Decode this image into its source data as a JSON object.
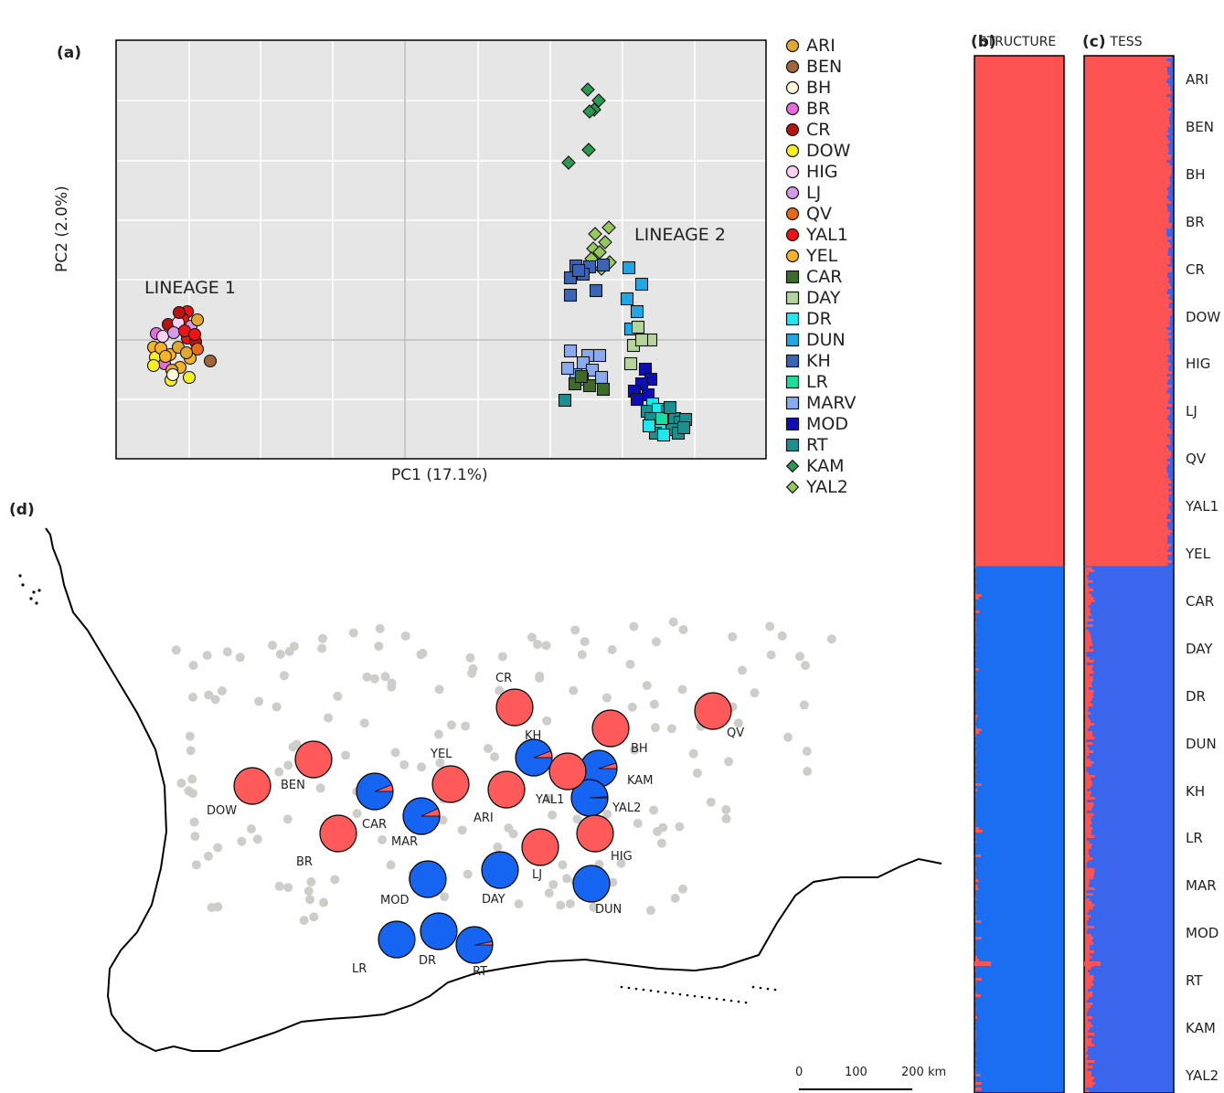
{
  "panel_labels": {
    "a": "(a)",
    "b": "(b)",
    "c": "(c)",
    "d": "(d)"
  },
  "chart_data": [
    {
      "type": "scatter",
      "panel": "(a)",
      "xlabel": "PC1 (17.1%)",
      "ylabel": "PC2 (2.0%)",
      "grid": true,
      "annotations": [
        "LINEAGE 1",
        "LINEAGE 2"
      ],
      "legend": [
        {
          "name": "ARI",
          "marker": "circle",
          "color": "#e0a832"
        },
        {
          "name": "BEN",
          "marker": "circle",
          "color": "#a0683a"
        },
        {
          "name": "BH",
          "marker": "circle",
          "color": "#fbf7d8"
        },
        {
          "name": "BR",
          "marker": "circle",
          "color": "#e86ae0"
        },
        {
          "name": "CR",
          "marker": "circle",
          "color": "#b81414"
        },
        {
          "name": "DOW",
          "marker": "circle",
          "color": "#f7ef1e"
        },
        {
          "name": "HIG",
          "marker": "circle",
          "color": "#f8d2f0"
        },
        {
          "name": "LJ",
          "marker": "circle",
          "color": "#d59ae8"
        },
        {
          "name": "QV",
          "marker": "circle",
          "color": "#e86a18"
        },
        {
          "name": "YAL1",
          "marker": "circle",
          "color": "#ee1414"
        },
        {
          "name": "YEL",
          "marker": "circle",
          "color": "#f5b325"
        },
        {
          "name": "CAR",
          "marker": "square",
          "color": "#3e6b28"
        },
        {
          "name": "DAY",
          "marker": "square",
          "color": "#b4d69c"
        },
        {
          "name": "DR",
          "marker": "square",
          "color": "#1ee8f0"
        },
        {
          "name": "DUN",
          "marker": "square",
          "color": "#1ea8e6"
        },
        {
          "name": "KH",
          "marker": "square",
          "color": "#3a64b8"
        },
        {
          "name": "LR",
          "marker": "square",
          "color": "#18e0a0"
        },
        {
          "name": "MARV",
          "marker": "square",
          "color": "#8aaaf0"
        },
        {
          "name": "MOD",
          "marker": "square",
          "color": "#0e0eb8"
        },
        {
          "name": "RT",
          "marker": "square",
          "color": "#1a9090"
        },
        {
          "name": "KAM",
          "marker": "diamond",
          "color": "#2a9a50"
        },
        {
          "name": "YAL2",
          "marker": "diamond",
          "color": "#96c85a"
        }
      ],
      "groups": {
        "lineage1": {
          "x": [
            -0.95,
            -0.75
          ],
          "y": [
            -0.3,
            0.2
          ],
          "pops": [
            "ARI",
            "BEN",
            "BH",
            "BR",
            "CR",
            "DOW",
            "HIG",
            "LJ",
            "QV",
            "YAL1",
            "YEL"
          ]
        },
        "lineage2_clusters": [
          {
            "pops": [
              "KAM"
            ],
            "x": [
              0.85,
              0.93
            ],
            "y": [
              1.7,
              2.4
            ]
          },
          {
            "pops": [
              "YAL2",
              "KH"
            ],
            "x": [
              0.85,
              0.93
            ],
            "y": [
              0.8,
              1.0
            ]
          },
          {
            "pops": [
              "DUN",
              "DAY"
            ],
            "x": [
              0.93,
              1.0
            ],
            "y": [
              0.0,
              0.9
            ]
          },
          {
            "pops": [
              "MARV",
              "CAR",
              "KH"
            ],
            "x": [
              0.83,
              0.92
            ],
            "y": [
              -0.55,
              -0.15
            ]
          },
          {
            "pops": [
              "MOD",
              "DR",
              "RT",
              "LR"
            ],
            "x": [
              0.96,
              1.08
            ],
            "y": [
              -0.95,
              -0.4
            ]
          }
        ]
      }
    },
    {
      "type": "bar",
      "panel": "(b)",
      "title": "STRUCTURE",
      "orientation": "stacked-horizontal-admixture",
      "categories": [
        "ARI",
        "BEN",
        "BH",
        "BR",
        "CR",
        "DOW",
        "HIG",
        "LJ",
        "QV",
        "YAL1",
        "YEL",
        "CAR",
        "DAY",
        "DR",
        "DUN",
        "KH",
        "LR",
        "MAR",
        "MOD",
        "RT",
        "KAM",
        "YAL2"
      ],
      "series": [
        {
          "name": "",
          "color": "#ff5252",
          "values": [
            1,
            1,
            1,
            1,
            1,
            1,
            1,
            1,
            1,
            1,
            1,
            0.02,
            0.01,
            0.0,
            0.0,
            0.04,
            0.0,
            0.03,
            0.02,
            0.02,
            0.03,
            0.02
          ]
        },
        {
          "name": "",
          "color": "#1a6ef2",
          "values": [
            0,
            0,
            0,
            0,
            0,
            0,
            0,
            0,
            0,
            0,
            0,
            0.98,
            0.99,
            1.0,
            1.0,
            0.96,
            1.0,
            0.97,
            0.98,
            0.98,
            0.97,
            0.98
          ]
        }
      ]
    },
    {
      "type": "bar",
      "panel": "(c)",
      "title": "TESS",
      "orientation": "stacked-horizontal-admixture",
      "categories": [
        "ARI",
        "BEN",
        "BH",
        "BR",
        "CR",
        "DOW",
        "HIG",
        "LJ",
        "QV",
        "YAL1",
        "YEL",
        "CAR",
        "DAY",
        "DR",
        "DUN",
        "KH",
        "LR",
        "MAR",
        "MOD",
        "RT",
        "KAM",
        "YAL2"
      ],
      "series": [
        {
          "name": "",
          "color": "#ff5252",
          "values": [
            0.97,
            0.97,
            0.97,
            0.97,
            0.97,
            0.97,
            0.97,
            0.97,
            0.97,
            0.97,
            0.97,
            0.09,
            0.08,
            0.07,
            0.08,
            0.1,
            0.07,
            0.09,
            0.08,
            0.07,
            0.09,
            0.08
          ]
        },
        {
          "name": "",
          "color": "#3a66ee",
          "values": [
            0.03,
            0.03,
            0.03,
            0.03,
            0.03,
            0.03,
            0.03,
            0.03,
            0.03,
            0.03,
            0.03,
            0.91,
            0.92,
            0.93,
            0.92,
            0.9,
            0.93,
            0.91,
            0.92,
            0.93,
            0.91,
            0.92
          ]
        }
      ]
    },
    {
      "type": "pie",
      "panel": "(d)",
      "description_type": "map-of-pie-charts",
      "colors": {
        "red": "#ff5a5a",
        "blue": "#1565f2"
      },
      "scale_bar": {
        "ticks": [
          "0",
          "100",
          "200 km"
        ]
      },
      "pies": [
        {
          "label": "CR",
          "blue_fraction": 0.0
        },
        {
          "label": "QV",
          "blue_fraction": 0.0
        },
        {
          "label": "BH",
          "blue_fraction": 0.0
        },
        {
          "label": "KH",
          "blue_fraction": 0.94
        },
        {
          "label": "KAM",
          "blue_fraction": 0.95
        },
        {
          "label": "YAL2",
          "blue_fraction": 0.99
        },
        {
          "label": "YAL1",
          "blue_fraction": 0.0
        },
        {
          "label": "ARI",
          "blue_fraction": 0.0
        },
        {
          "label": "YEL",
          "blue_fraction": 0.0
        },
        {
          "label": "BEN",
          "blue_fraction": 0.0
        },
        {
          "label": "DOW",
          "blue_fraction": 0.0
        },
        {
          "label": "CAR",
          "blue_fraction": 0.94
        },
        {
          "label": "MAR",
          "blue_fraction": 0.93
        },
        {
          "label": "BR",
          "blue_fraction": 0.0
        },
        {
          "label": "HIG",
          "blue_fraction": 0.0
        },
        {
          "label": "LJ",
          "blue_fraction": 0.0
        },
        {
          "label": "DAY",
          "blue_fraction": 1.0
        },
        {
          "label": "DUN",
          "blue_fraction": 1.0
        },
        {
          "label": "MOD",
          "blue_fraction": 1.0
        },
        {
          "label": "LR",
          "blue_fraction": 1.0
        },
        {
          "label": "DR",
          "blue_fraction": 1.0
        },
        {
          "label": "RT",
          "blue_fraction": 0.97
        }
      ]
    }
  ]
}
